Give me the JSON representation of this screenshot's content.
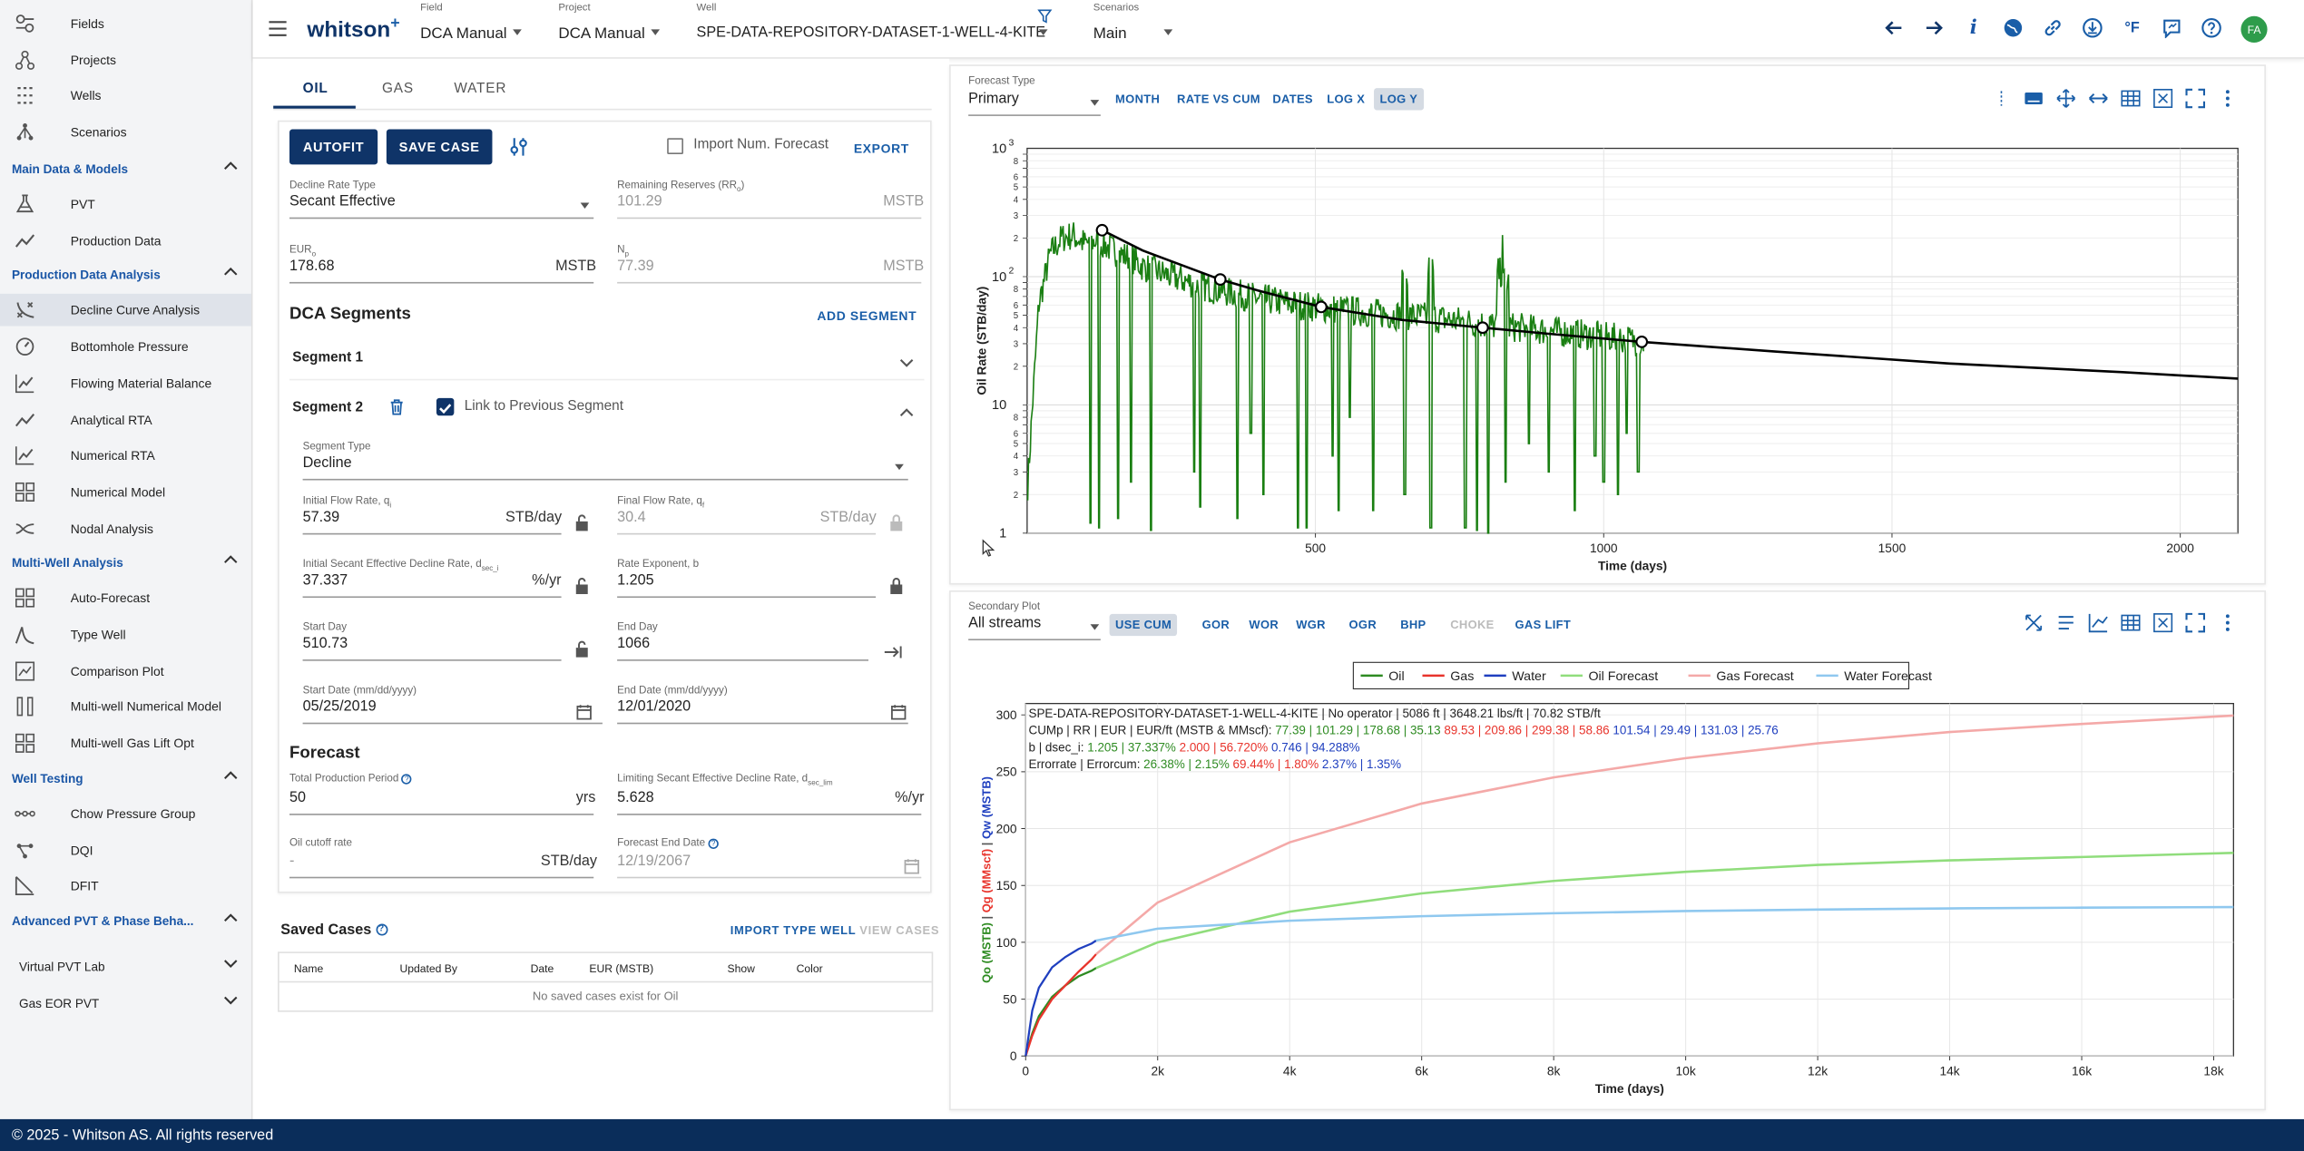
{
  "sidebar": {
    "top_items": [
      {
        "label": "Fields",
        "icon": "fields-icon"
      },
      {
        "label": "Projects",
        "icon": "projects-icon"
      },
      {
        "label": "Wells",
        "icon": "wells-icon"
      },
      {
        "label": "Scenarios",
        "icon": "scenarios-icon"
      }
    ],
    "sections": [
      {
        "title": "Main Data & Models",
        "items": [
          {
            "label": "PVT",
            "icon": "flask-icon"
          },
          {
            "label": "Production Data",
            "icon": "trend-icon"
          }
        ]
      },
      {
        "title": "Production Data Analysis",
        "items": [
          {
            "label": "Decline Curve Analysis",
            "icon": "decline-curve-icon",
            "active": true
          },
          {
            "label": "Bottomhole Pressure",
            "icon": "gauge-icon"
          },
          {
            "label": "Flowing Material Balance",
            "icon": "chart-line-icon"
          },
          {
            "label": "Analytical RTA",
            "icon": "trend-icon"
          },
          {
            "label": "Numerical RTA",
            "icon": "chart-line-icon"
          },
          {
            "label": "Numerical Model",
            "icon": "grid-icon"
          },
          {
            "label": "Nodal Analysis",
            "icon": "nodal-icon"
          }
        ]
      },
      {
        "title": "Multi-Well Analysis",
        "items": [
          {
            "label": "Auto-Forecast",
            "icon": "grid-icon"
          },
          {
            "label": "Type Well",
            "icon": "type-well-icon"
          },
          {
            "label": "Comparison Plot",
            "icon": "comparison-icon"
          },
          {
            "label": "Multi-well Numerical Model",
            "icon": "columns-icon"
          },
          {
            "label": "Multi-well Gas Lift Opt",
            "icon": "grid-icon"
          }
        ]
      },
      {
        "title": "Well Testing",
        "items": [
          {
            "label": "Chow Pressure Group",
            "icon": "dots-icon"
          },
          {
            "label": "DQI",
            "icon": "dqi-icon"
          },
          {
            "label": "DFIT",
            "icon": "dfit-icon"
          }
        ]
      },
      {
        "title": "Advanced PVT & Phase Beha...",
        "items": []
      }
    ],
    "collapsed": [
      "Virtual PVT Lab",
      "Gas EOR PVT"
    ]
  },
  "footer": {
    "text": "© 2025 - Whitson AS. All rights reserved"
  },
  "topbar": {
    "brand": "whitson",
    "brand_sup": "+",
    "field_caption": "Field",
    "field_value": "DCA Manual",
    "project_caption": "Project",
    "project_value": "DCA Manual",
    "well_caption": "Well",
    "well_value": "SPE-DATA-REPOSITORY-DATASET-1-WELL-4-KITE",
    "scenario_caption": "Scenarios",
    "scenario_value": "Main",
    "info_glyph": "i",
    "temp_glyph": "°F",
    "avatar": "FA"
  },
  "left": {
    "tabs": [
      "OIL",
      "GAS",
      "WATER"
    ],
    "autofit": "AUTOFIT",
    "save_case": "SAVE CASE",
    "import_num": "Import Num. Forecast",
    "export": "EXPORT",
    "decline_rate_type_caption": "Decline Rate Type",
    "decline_rate_type": "Secant Effective",
    "rem_res_caption": "Remaining Reserves (RR",
    "rem_res_sub": "o",
    "rem_res_caption_end": ")",
    "rem_res_value": "101.29",
    "rem_res_unit": "MSTB",
    "eur_caption": "EUR",
    "eur_sub": "o",
    "eur_value": "178.68",
    "eur_unit": "MSTB",
    "np_caption": "N",
    "np_sub": "p",
    "np_value": "77.39",
    "np_unit": "MSTB",
    "dca_segments": "DCA Segments",
    "add_segment": "ADD SEGMENT",
    "segment1": "Segment 1",
    "segment2": "Segment 2",
    "link_prev": "Link to Previous Segment",
    "segment_type_caption": "Segment Type",
    "segment_type": "Decline",
    "qi_caption": "Initial Flow Rate, q",
    "qi_sub": "i",
    "qi_value": "57.39",
    "qi_unit": "STB/day",
    "qf_caption": "Final Flow Rate, q",
    "qf_sub": "f",
    "qf_value": "30.4",
    "qf_unit": "STB/day",
    "dsec_caption": "Initial Secant Effective Decline Rate, d",
    "dsec_sub": "sec_i",
    "dsec_value": "37.337",
    "dsec_unit": "%/yr",
    "b_caption": "Rate Exponent, b",
    "b_value": "1.205",
    "start_day_caption": "Start Day",
    "start_day": "510.73",
    "end_day_caption": "End Day",
    "end_day": "1066",
    "start_date_caption": "Start Date (mm/dd/yyyy)",
    "start_date": "05/25/2019",
    "end_date_caption": "End Date (mm/dd/yyyy)",
    "end_date": "12/01/2020",
    "forecast": "Forecast",
    "tpp_caption": "Total Production Period",
    "tpp_value": "50",
    "tpp_unit": "yrs",
    "lim_caption": "Limiting Secant Effective Decline Rate, d",
    "lim_sub": "sec_lim",
    "lim_value": "5.628",
    "lim_unit": "%/yr",
    "cutoff_caption": "Oil cutoff rate",
    "cutoff_value": "-",
    "cutoff_unit": "STB/day",
    "fed_caption": "Forecast End Date",
    "fed_value": "12/19/2067",
    "saved_cases": "Saved Cases",
    "import_type_well": "IMPORT TYPE WELL",
    "view_cases": "VIEW CASES",
    "table_headers": [
      "Name",
      "Updated By",
      "Date",
      "EUR (MSTB)",
      "Show",
      "Color"
    ],
    "table_empty": "No saved cases exist for Oil"
  },
  "plot1": {
    "caption": "Forecast Type",
    "select": "Primary",
    "buttons": [
      "MONTH",
      "RATE VS CUM",
      "DATES",
      "LOG X",
      "LOG Y"
    ],
    "active_button": "LOG Y",
    "ylabel": "Oil Rate (STB/day)",
    "xlabel": "Time (days)"
  },
  "plot2": {
    "caption": "Secondary Plot",
    "select": "All streams",
    "buttons": [
      "USE CUM",
      "GOR",
      "WOR",
      "WGR",
      "OGR",
      "BHP",
      "CHOKE",
      "GAS LIFT"
    ],
    "active_button": "USE CUM",
    "disabled_button": "CHOKE",
    "legend": [
      {
        "name": "Oil",
        "color": "#2e8b22"
      },
      {
        "name": "Gas",
        "color": "#e8342c"
      },
      {
        "name": "Water",
        "color": "#1f3fbf"
      },
      {
        "name": "Oil Forecast",
        "color": "#90dd7c"
      },
      {
        "name": "Gas Forecast",
        "color": "#f4a9a8"
      },
      {
        "name": "Water Forecast",
        "color": "#8fc8ef"
      }
    ],
    "info_line1": "SPE-DATA-REPOSITORY-DATASET-1-WELL-4-KITE | No operator | 5086 ft | 3648.21 lbs/ft | 70.82 STB/ft",
    "info_line2_label": "CUMp | RR | EUR | EUR/ft (MSTB & MMscf): ",
    "info_line2_oil": "77.39 | 101.29 | 178.68 | 35.13",
    "info_line2_gas": "89.53 | 209.86 | 299.38 | 58.86",
    "info_line2_water": "101.54 | 29.49 | 131.03 | 25.76",
    "info_line3_label": "b | dsec_i: ",
    "info_line3_oil": "1.205 | 37.337%",
    "info_line3_gas": "2.000 | 56.720%",
    "info_line3_water": "0.746 | 94.288%",
    "info_line4_label": "Errorrate | Errorcum: ",
    "info_line4_oil": "26.38% | 2.15%",
    "info_line4_gas": "69.44% | 1.80%",
    "info_line4_water": "2.37% | 1.35%",
    "ylabel_oil": "Qo (MSTB)",
    "ylabel_gas": "Qg (MMscf)",
    "ylabel_water": "Qw (MSTB)",
    "xlabel": "Time (days)"
  },
  "chart_data": [
    {
      "type": "line",
      "title": "",
      "xlabel": "Time (days)",
      "ylabel": "Oil Rate (STB/day)",
      "xlim": [
        0,
        2100
      ],
      "ylim": [
        1,
        1000
      ],
      "yscale": "log",
      "x_ticks": [
        500,
        1000,
        1500,
        2000
      ],
      "y_ticks": [
        "1",
        "10",
        "10^2",
        "10^3"
      ],
      "grid": true,
      "series": [
        {
          "name": "",
          "color": "#1a7f12",
          "x": [
            0,
            20,
            40,
            60,
            80,
            100,
            120,
            140,
            160,
            180,
            200,
            250,
            300,
            350,
            400,
            450,
            500,
            550,
            600,
            650,
            700,
            750,
            800,
            850,
            900,
            950,
            1000,
            1050,
            1070
          ],
          "y": [
            2,
            60,
            150,
            200,
            210,
            180,
            190,
            170,
            150,
            140,
            120,
            100,
            85,
            75,
            68,
            62,
            58,
            55,
            52,
            50,
            48,
            45,
            42,
            40,
            38,
            36,
            34,
            32,
            30
          ]
        },
        {
          "name": "",
          "color": "#000000",
          "x": [
            130,
            200,
            335,
            400,
            510,
            650,
            790,
            900,
            1066,
            1300,
            1600,
            1900,
            2100
          ],
          "y": [
            230,
            160,
            95,
            78,
            58,
            46,
            40,
            36,
            31,
            26,
            21,
            18,
            16
          ]
        }
      ],
      "control_points": {
        "x": [
          130,
          335,
          510,
          790,
          1066
        ],
        "y": [
          230,
          95,
          58,
          40,
          31
        ]
      }
    },
    {
      "type": "line",
      "title": "",
      "xlabel": "Time (days)",
      "xlim": [
        0,
        18300
      ],
      "ylim": [
        0,
        310
      ],
      "x_ticks": [
        "0",
        "2k",
        "4k",
        "6k",
        "8k",
        "10k",
        "12k",
        "14k",
        "16k",
        "18k"
      ],
      "y_ticks": [
        0,
        50,
        100,
        150,
        200,
        250,
        300
      ],
      "grid": true,
      "legend": "top-center",
      "series": [
        {
          "name": "Oil",
          "color": "#2e8b22",
          "x": [
            0,
            100,
            200,
            400,
            600,
            800,
            1000,
            1066
          ],
          "y": [
            0,
            20,
            35,
            52,
            62,
            70,
            75,
            77.39
          ]
        },
        {
          "name": "Gas",
          "color": "#e8342c",
          "x": [
            0,
            100,
            200,
            400,
            600,
            800,
            1000,
            1066
          ],
          "y": [
            0,
            18,
            32,
            50,
            62,
            74,
            85,
            89.53
          ]
        },
        {
          "name": "Water",
          "color": "#1f3fbf",
          "x": [
            0,
            100,
            200,
            400,
            600,
            800,
            1000,
            1066
          ],
          "y": [
            0,
            40,
            60,
            78,
            87,
            94,
            99,
            101.54
          ]
        },
        {
          "name": "Oil Forecast",
          "color": "#90dd7c",
          "x": [
            1066,
            2000,
            4000,
            6000,
            8000,
            10000,
            12000,
            14000,
            16000,
            18300
          ],
          "y": [
            77.39,
            100,
            127,
            143,
            154,
            162,
            168,
            172,
            175,
            178.68
          ]
        },
        {
          "name": "Gas Forecast",
          "color": "#f4a9a8",
          "x": [
            1066,
            2000,
            4000,
            6000,
            8000,
            10000,
            12000,
            14000,
            16000,
            18300
          ],
          "y": [
            89.53,
            135,
            188,
            222,
            245,
            262,
            275,
            285,
            292,
            299.38
          ]
        },
        {
          "name": "Water Forecast",
          "color": "#8fc8ef",
          "x": [
            1066,
            2000,
            4000,
            6000,
            8000,
            10000,
            12000,
            14000,
            16000,
            18300
          ],
          "y": [
            101.54,
            112,
            119,
            123,
            125.5,
            127.5,
            128.8,
            129.8,
            130.4,
            131.03
          ]
        }
      ]
    }
  ]
}
